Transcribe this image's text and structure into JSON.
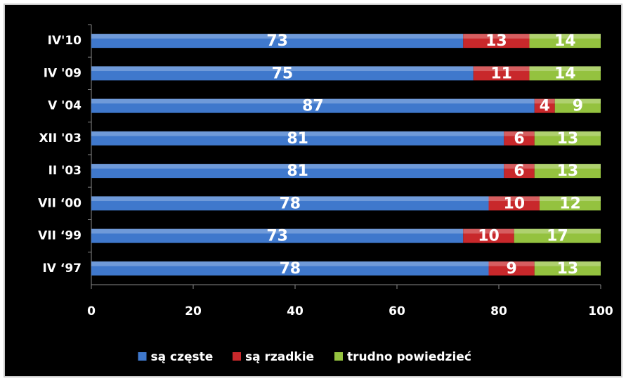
{
  "chart_data": {
    "type": "stacked_bar_horizontal",
    "categories": [
      "IV'10",
      "IV '09",
      "V '04",
      "XII '03",
      "II '03",
      "VII ‘00",
      "VII ‘99",
      "IV ‘97"
    ],
    "series": [
      {
        "name": "są częste",
        "color": "#3f78cc",
        "values": [
          73,
          75,
          87,
          81,
          81,
          78,
          73,
          78
        ]
      },
      {
        "name": "są rzadkie",
        "color": "#c8282b",
        "values": [
          13,
          11,
          4,
          6,
          6,
          10,
          10,
          9
        ]
      },
      {
        "name": "trudno powiedzieć",
        "color": "#94c23f",
        "values": [
          14,
          14,
          9,
          13,
          13,
          12,
          17,
          13
        ]
      }
    ],
    "xlim": [
      0,
      100
    ],
    "xticks": [
      0,
      20,
      40,
      60,
      80,
      100
    ],
    "legend": "bottom"
  }
}
